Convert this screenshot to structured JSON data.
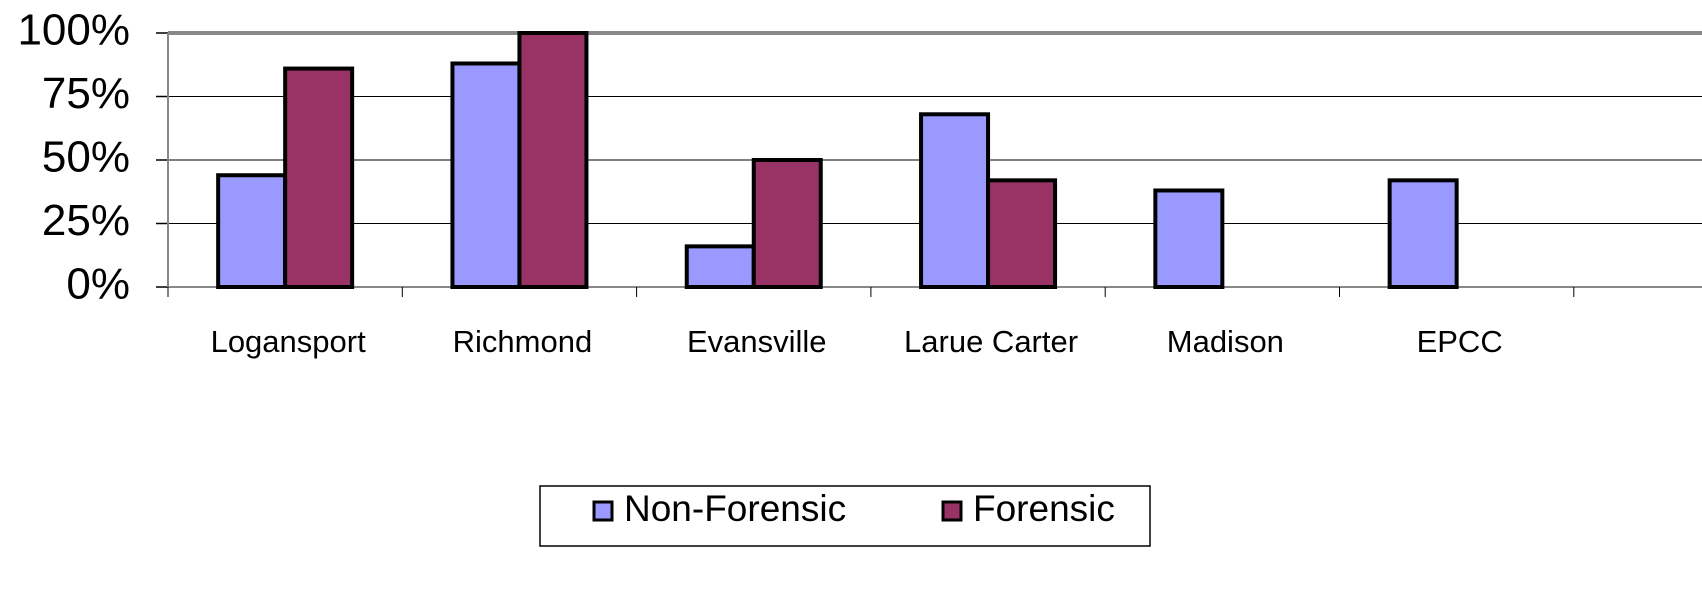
{
  "chart_data": {
    "type": "bar",
    "categories": [
      "Logansport",
      "Richmond",
      "Evansville",
      "Larue Carter",
      "Madison",
      "EPCC"
    ],
    "series": [
      {
        "name": "Non-Forensic",
        "color": "#9999ff",
        "values": [
          44,
          88,
          16,
          68,
          38,
          42
        ]
      },
      {
        "name": "Forensic",
        "color": "#993366",
        "values": [
          86,
          100,
          50,
          42,
          null,
          null
        ]
      }
    ],
    "ylim": [
      0,
      100
    ],
    "yticks": [
      {
        "value": 0,
        "label": "0%"
      },
      {
        "value": 25,
        "label": "25%"
      },
      {
        "value": 50,
        "label": "50%"
      },
      {
        "value": 75,
        "label": "75%"
      },
      {
        "value": 100,
        "label": "100%"
      }
    ],
    "grid": true,
    "legend": "bottom"
  }
}
